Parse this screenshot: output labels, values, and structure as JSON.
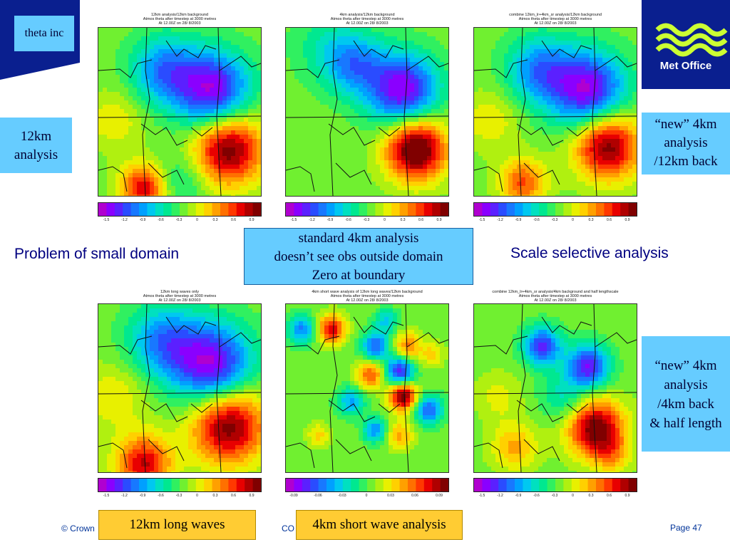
{
  "header": {
    "theta_label": "theta inc",
    "logo_text": "Met Office"
  },
  "side_labels": {
    "left_top": [
      "12km",
      "analysis"
    ],
    "right_top": [
      "“new” 4km",
      "analysis",
      "/12km back"
    ],
    "right_bottom": [
      "“new” 4km",
      "analysis",
      "/4km back",
      "& half length"
    ]
  },
  "captions": {
    "problem": "Problem of small domain",
    "center": [
      "standard 4km analysis",
      "doesn’t see obs outside domain",
      "Zero at boundary"
    ],
    "scale": "Scale selective analysis",
    "long_waves": "12km long waves",
    "short_waves": "4km short wave analysis"
  },
  "maps": [
    {
      "title": [
        "12km analysis/12km background",
        "Atmos theta after timestep at 3000 metres",
        "At 12.00Z on 28/ 8/2003"
      ]
    },
    {
      "title": [
        "4km analysis/12km background",
        "Atmos theta after timestep at 3000 metres",
        "At 12.00Z on 28/ 8/2003"
      ]
    },
    {
      "title": [
        "combine 12km_lr+4km_sr analysis/12km background",
        "Atmos theta after timestep at 3000 metres",
        "At 12.00Z on 28/ 8/2003"
      ]
    },
    {
      "title": [
        "12km long waves only",
        "Atmos theta after timestep at 3000 metres",
        "At 12.00Z on 28/ 8/2003"
      ]
    },
    {
      "title": [
        "4km short wave analysis of 12km long waves/12km background",
        "Atmos theta after timestep at 3000 metres",
        "At 12.00Z on 28/ 8/2003"
      ]
    },
    {
      "title": [
        "combine 12km_lr+4km_sr analysis/4km background and half lengthscale",
        "Atmos theta after timestep at 3000 metres",
        "At 12.00Z on 28/ 8/2003"
      ]
    }
  ],
  "colorbar_ticks": {
    "standard": [
      "-1.5",
      "-1.2",
      "-0.9",
      "-0.6",
      "-0.3",
      "0",
      "0.3",
      "0.6",
      "0.9"
    ],
    "short": [
      "-0.09",
      "-0.06",
      "-0.03",
      "0",
      "0.03",
      "0.06",
      "0.09"
    ]
  },
  "footer": {
    "copyright": "© Crown",
    "co": "CO",
    "page": "Page 47"
  },
  "colors": {
    "brand_blue": "#0a1f8f",
    "label_bg": "#66ccff",
    "orange_bg": "#ffcc33"
  }
}
